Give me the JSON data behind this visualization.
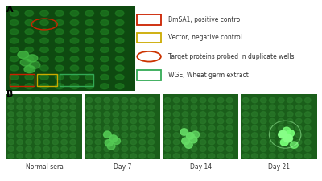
{
  "background_color": "#ffffff",
  "panel_A_label": "A",
  "panel_B_label": "B",
  "legend_items": [
    {
      "label": "BmSA1, positive control",
      "color": "#cc2200",
      "shape": "rect"
    },
    {
      "label": "Vector, negative control",
      "color": "#ccaa00",
      "shape": "rect"
    },
    {
      "label": "Target proteins probed in duplicate wells",
      "color": "#cc3300",
      "shape": "ellipse"
    },
    {
      "label": "WGE, Wheat germ extract",
      "color": "#33aa55",
      "shape": "rect"
    }
  ],
  "panel_B_labels": [
    "Normal sera",
    "Day 7",
    "Day 14",
    "Day 21"
  ],
  "microarray_bg": "#0e4a10",
  "dot_color": "#1e7a20",
  "dot_bright": "#44cc44",
  "text_fontsize": 5.5,
  "label_fontsize": 7
}
